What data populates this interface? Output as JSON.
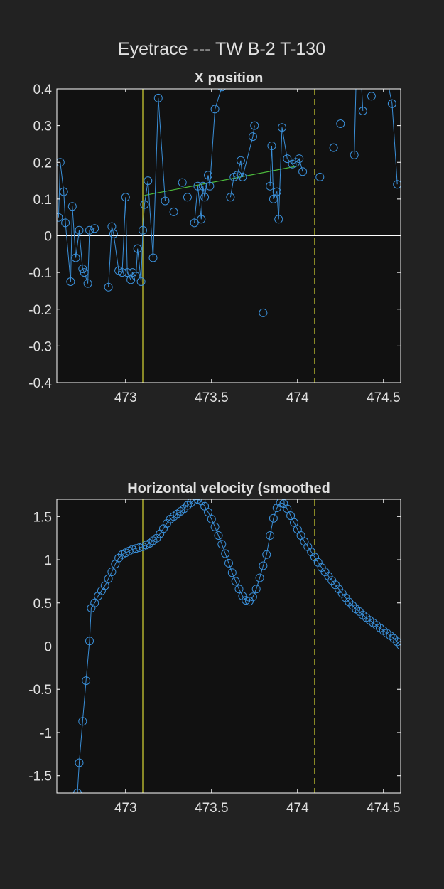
{
  "figure": {
    "title": "Eyetrace --- TW B-2 T-130",
    "background": "#222222",
    "axes_background": "#111111",
    "axes_color": "#ffffff",
    "text_color": "#e0e0e0",
    "marker_color": "#3a8fd8",
    "fit_line_color": "#4cbb3c",
    "event_line_color": "#c8c832",
    "zero_line_color": "#ffffff"
  },
  "chart_data": [
    {
      "type": "scatter",
      "title": "X position",
      "xlabel": "",
      "ylabel": "",
      "xlim": [
        472.6,
        474.6
      ],
      "ylim": [
        -0.4,
        0.4
      ],
      "xticks": [
        473,
        473.5,
        474,
        474.5
      ],
      "xtick_labels": [
        "473",
        "473.5",
        "474",
        "474.5"
      ],
      "yticks": [
        -0.4,
        -0.3,
        -0.2,
        -0.1,
        0,
        0.1,
        0.2,
        0.3,
        0.4
      ],
      "ytick_labels": [
        "-0.4",
        "-0.3",
        "-0.2",
        "-0.1",
        "0",
        "0.1",
        "0.2",
        "0.3",
        "0.4"
      ],
      "grid": false,
      "zero_line": true,
      "vertical_lines": [
        {
          "x": 473.1,
          "style": "solid"
        },
        {
          "x": 474.1,
          "style": "dashed"
        }
      ],
      "fit_line": {
        "x": [
          473.11,
          474.0
        ],
        "y": [
          0.11,
          0.19
        ]
      },
      "series": [
        {
          "marker": "circle",
          "line_segments": [
            {
              "x": [
                472.61,
                472.62,
                472.64,
                472.65,
                472.68,
                472.69,
                472.71,
                472.73,
                472.75,
                472.76,
                472.78,
                472.79,
                472.82
              ],
              "y": [
                0.05,
                0.2,
                0.12,
                0.035,
                -0.125,
                0.08,
                -0.06,
                0.015,
                -0.09,
                -0.1,
                -0.13,
                0.015,
                0.02
              ]
            },
            {
              "x": [
                472.9,
                472.92,
                472.93,
                472.96,
                472.98,
                473.0,
                473.01,
                473.03,
                473.04,
                473.06,
                473.07,
                473.09,
                473.1,
                473.11,
                473.13,
                473.16,
                473.19,
                473.23
              ],
              "y": [
                -0.14,
                0.025,
                0.005,
                -0.095,
                -0.1,
                0.105,
                -0.1,
                -0.12,
                -0.1,
                -0.11,
                -0.035,
                -0.125,
                0.015,
                0.085,
                0.15,
                -0.06,
                0.375,
                0.095
              ]
            },
            {
              "x": [
                473.4,
                473.42,
                473.44,
                473.45,
                473.46,
                473.48,
                473.49,
                473.52,
                473.56
              ],
              "y": [
                0.035,
                0.135,
                0.045,
                0.135,
                0.105,
                0.165,
                0.135,
                0.345,
                0.405
              ]
            },
            {
              "x": [
                473.61,
                473.63,
                473.65,
                473.67,
                473.68,
                473.74,
                473.75
              ],
              "y": [
                0.105,
                0.16,
                0.165,
                0.205,
                0.16,
                0.27,
                0.3
              ]
            },
            {
              "x": [
                473.84,
                473.85,
                473.86,
                473.88,
                473.89,
                473.91,
                473.94,
                473.97,
                473.99,
                474.01,
                474.03
              ],
              "y": [
                0.135,
                0.245,
                0.1,
                0.12,
                0.045,
                0.295,
                0.21,
                0.195,
                0.2,
                0.21,
                0.175
              ]
            },
            {
              "x": [
                474.33,
                474.35,
                474.38
              ],
              "y": [
                0.22,
                0.6,
                0.34
              ]
            },
            {
              "x": [
                474.51,
                474.55,
                474.58
              ],
              "y": [
                0.45,
                0.36,
                0.14
              ]
            }
          ],
          "isolated_points": {
            "x": [
              473.28,
              473.33,
              473.36,
              473.8,
              474.13,
              474.21,
              474.25,
              474.43,
              474.55
            ],
            "y": [
              0.065,
              0.145,
              0.105,
              -0.21,
              0.16,
              0.24,
              0.305,
              0.38,
              0.36
            ]
          }
        }
      ]
    },
    {
      "type": "scatter",
      "title": "Horizontal velocity (smoothed",
      "xlabel": "",
      "ylabel": "",
      "xlim": [
        472.6,
        474.6
      ],
      "ylim": [
        -1.7,
        1.7
      ],
      "xticks": [
        473,
        473.5,
        474,
        474.5
      ],
      "xtick_labels": [
        "473",
        "473.5",
        "474",
        "474.5"
      ],
      "yticks": [
        -1.5,
        -1,
        -0.5,
        0,
        0.5,
        1,
        1.5
      ],
      "ytick_labels": [
        "-1.5",
        "-1",
        "-0.5",
        "0",
        "0.5",
        "1",
        "1.5"
      ],
      "grid": false,
      "zero_line": true,
      "vertical_lines": [
        {
          "x": 473.1,
          "style": "solid"
        },
        {
          "x": 474.1,
          "style": "dashed"
        }
      ],
      "series": [
        {
          "marker": "circle",
          "connected": true,
          "x": [
            472.72,
            472.73,
            472.75,
            472.77,
            472.79,
            472.8,
            472.82,
            472.84,
            472.86,
            472.88,
            472.9,
            472.92,
            472.94,
            472.96,
            472.98,
            473.0,
            473.02,
            473.04,
            473.06,
            473.08,
            473.1,
            473.12,
            473.14,
            473.16,
            473.18,
            473.2,
            473.22,
            473.24,
            473.26,
            473.28,
            473.3,
            473.32,
            473.34,
            473.36,
            473.38,
            473.4,
            473.42,
            473.44,
            473.46,
            473.48,
            473.5,
            473.52,
            473.54,
            473.56,
            473.58,
            473.6,
            473.62,
            473.64,
            473.66,
            473.68,
            473.7,
            473.72,
            473.74,
            473.76,
            473.78,
            473.8,
            473.82,
            473.84,
            473.86,
            473.88,
            473.9,
            473.92,
            473.94,
            473.96,
            473.98,
            474.0,
            474.02,
            474.04,
            474.06,
            474.08,
            474.1,
            474.12,
            474.14,
            474.16,
            474.18,
            474.2,
            474.22,
            474.24,
            474.26,
            474.28,
            474.3,
            474.32,
            474.34,
            474.36,
            474.38,
            474.4,
            474.42,
            474.44,
            474.46,
            474.48,
            474.5,
            474.52,
            474.54,
            474.56,
            474.58,
            474.6
          ],
          "y": [
            -1.7,
            -1.35,
            -0.87,
            -0.4,
            0.06,
            0.44,
            0.5,
            0.58,
            0.64,
            0.7,
            0.78,
            0.86,
            0.95,
            1.02,
            1.06,
            1.08,
            1.1,
            1.12,
            1.13,
            1.14,
            1.15,
            1.17,
            1.19,
            1.22,
            1.25,
            1.3,
            1.36,
            1.42,
            1.47,
            1.5,
            1.53,
            1.56,
            1.59,
            1.63,
            1.66,
            1.69,
            1.7,
            1.68,
            1.62,
            1.55,
            1.47,
            1.38,
            1.28,
            1.18,
            1.07,
            0.96,
            0.85,
            0.75,
            0.66,
            0.58,
            0.53,
            0.52,
            0.57,
            0.66,
            0.79,
            0.93,
            1.06,
            1.28,
            1.48,
            1.6,
            1.66,
            1.65,
            1.59,
            1.51,
            1.43,
            1.35,
            1.28,
            1.21,
            1.15,
            1.09,
            1.03,
            0.97,
            0.91,
            0.86,
            0.81,
            0.76,
            0.71,
            0.66,
            0.61,
            0.56,
            0.51,
            0.47,
            0.43,
            0.4,
            0.36,
            0.33,
            0.3,
            0.27,
            0.24,
            0.21,
            0.18,
            0.15,
            0.12,
            0.09,
            0.05,
            0.01
          ]
        }
      ]
    }
  ]
}
